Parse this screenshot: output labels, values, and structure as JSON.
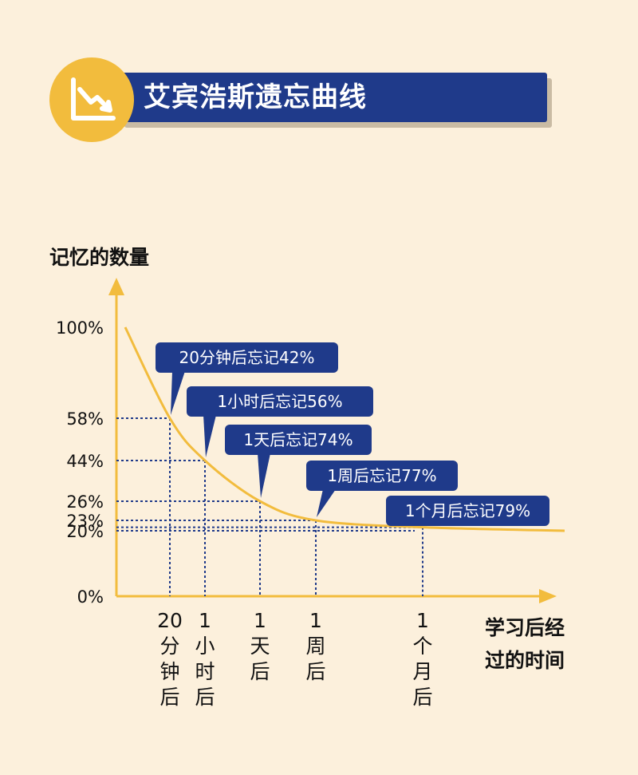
{
  "header": {
    "title": "艾宾浩斯遗忘曲线",
    "icon": "chart-trend-down-icon"
  },
  "colors": {
    "background": "#fcf0dc",
    "banner": "#1f3a8a",
    "accent": "#f2bc3d",
    "curve": "#f2bc3d",
    "guide": "#1f3a8a"
  },
  "chart_data": {
    "type": "line",
    "ylabel": "记忆的数量",
    "xlabel_lines": [
      "学习后经",
      "过的时间"
    ],
    "y_ticks": [
      {
        "value": 100,
        "label": "100%"
      },
      {
        "value": 58,
        "label": "58%"
      },
      {
        "value": 44,
        "label": "44%"
      },
      {
        "value": 26,
        "label": "26%"
      },
      {
        "value": 23,
        "label": "23%"
      },
      {
        "value": 20,
        "label": "20%"
      },
      {
        "value": 0,
        "label": "0%"
      }
    ],
    "points": [
      {
        "x": "20分钟后",
        "x_label_lines": [
          "20",
          "分",
          "钟",
          "后"
        ],
        "retention": 58,
        "callout": "20分钟后忘记42%"
      },
      {
        "x": "1小时后",
        "x_label_lines": [
          "1",
          "小",
          "时",
          "后"
        ],
        "retention": 44,
        "callout": "1小时后忘记56%"
      },
      {
        "x": "1天后",
        "x_label_lines": [
          "1",
          "天",
          "后"
        ],
        "retention": 26,
        "callout": "1天后忘记74%"
      },
      {
        "x": "1周后",
        "x_label_lines": [
          "1",
          "周",
          "后"
        ],
        "retention": 23,
        "callout": "1周后忘记77%"
      },
      {
        "x": "1个月后",
        "x_label_lines": [
          "1",
          "个",
          "月",
          "后"
        ],
        "retention": 21,
        "callout": "1个月后忘记79%"
      }
    ],
    "start_retention": 100,
    "end_retention": 20,
    "ylim": [
      0,
      100
    ],
    "grid": false
  }
}
